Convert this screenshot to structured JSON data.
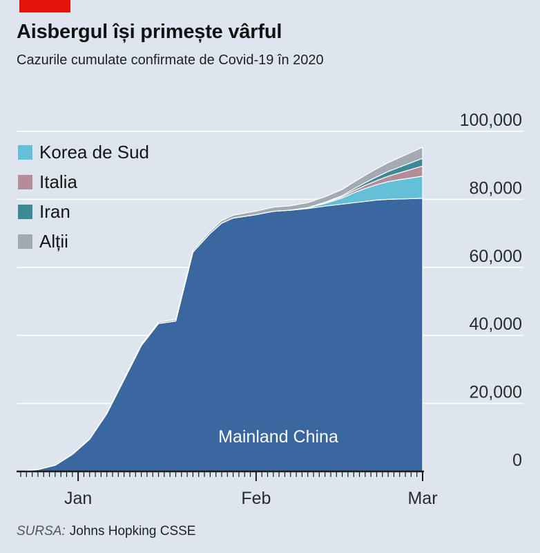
{
  "header": {
    "title": "Aisbergul își primește vârful",
    "subtitle": "Cazurile cumulate confirmate de Covid-19 în 2020"
  },
  "source": {
    "label": "SURSA:",
    "text": "Johns Hopking CSSE"
  },
  "chart_data": {
    "type": "area",
    "stacked": true,
    "x_unit": "days",
    "x": [
      0,
      3,
      6,
      9,
      12,
      15,
      18,
      21,
      24,
      27,
      30,
      33,
      35,
      37,
      39,
      41,
      44,
      47,
      50,
      53,
      56,
      58,
      60,
      62,
      64,
      66,
      68,
      70
    ],
    "series": [
      {
        "name": "Mainland China",
        "color": "#3a67a0",
        "values": [
          100,
          550,
          1800,
          5000,
          9500,
          17000,
          27000,
          37000,
          43500,
          44200,
          64500,
          70000,
          73000,
          74500,
          75000,
          75500,
          76500,
          76800,
          77300,
          78000,
          78600,
          79000,
          79400,
          79800,
          80000,
          80100,
          80200,
          80300
        ]
      },
      {
        "name": "Korea de Sud",
        "color": "#64c0d8",
        "values": [
          0,
          0,
          0,
          0,
          0,
          0,
          0,
          0,
          0,
          0,
          0,
          0,
          0,
          0,
          0,
          0,
          0,
          30,
          200,
          800,
          1800,
          2900,
          3800,
          4500,
          5200,
          5700,
          6100,
          6500
        ]
      },
      {
        "name": "Italia",
        "color": "#b58d9a",
        "values": [
          0,
          0,
          0,
          0,
          0,
          0,
          0,
          0,
          0,
          0,
          0,
          0,
          0,
          0,
          0,
          0,
          0,
          0,
          50,
          200,
          400,
          650,
          900,
          1200,
          1600,
          2000,
          2500,
          3000
        ]
      },
      {
        "name": "Iran",
        "color": "#3c8a96",
        "values": [
          0,
          0,
          0,
          0,
          0,
          0,
          0,
          0,
          0,
          0,
          0,
          0,
          0,
          0,
          0,
          0,
          0,
          0,
          30,
          150,
          300,
          500,
          800,
          1100,
          1400,
          1700,
          2000,
          2300
        ]
      },
      {
        "name": "Alții",
        "color": "#a3aab3",
        "values": [
          20,
          40,
          60,
          100,
          150,
          200,
          300,
          350,
          400,
          500,
          550,
          650,
          750,
          850,
          950,
          1050,
          1200,
          1300,
          1450,
          1600,
          1800,
          2000,
          2200,
          2400,
          2600,
          2800,
          3000,
          3200
        ]
      }
    ],
    "legend_order": [
      "Korea de Sud",
      "Italia",
      "Iran",
      "Alții"
    ],
    "legend_position": "top-left",
    "annotation": "Mainland China",
    "ylim": [
      0,
      100000
    ],
    "yticks": [
      "100,000",
      "80,000",
      "60,000",
      "40,000",
      "20,000",
      "0"
    ],
    "ytick_values": [
      100000,
      80000,
      60000,
      40000,
      20000,
      0
    ],
    "y_axis_position": "right",
    "xticks": [
      {
        "label": "Jan",
        "day": 10
      },
      {
        "label": "Feb",
        "day": 41
      },
      {
        "label": "Mar",
        "day": 70
      }
    ],
    "grid": true
  }
}
